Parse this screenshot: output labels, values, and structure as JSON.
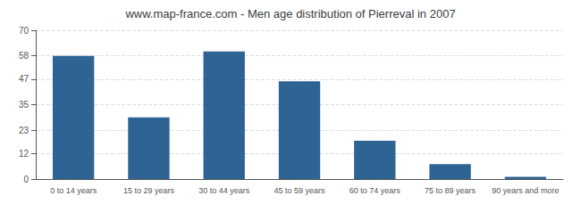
{
  "chart_data": {
    "type": "bar",
    "title": "www.map-france.com - Men age distribution of Pierreval in 2007",
    "categories": [
      "0 to 14 years",
      "15 to 29 years",
      "30 to 44 years",
      "45 to 59 years",
      "60 to 74 years",
      "75 to 89 years",
      "90 years and more"
    ],
    "values": [
      58,
      29,
      60,
      46,
      18,
      7,
      1
    ],
    "color": "#2e6394",
    "ylim": [
      0,
      70
    ],
    "yticks": [
      0,
      12,
      23,
      35,
      47,
      58,
      70
    ],
    "grid": true
  }
}
